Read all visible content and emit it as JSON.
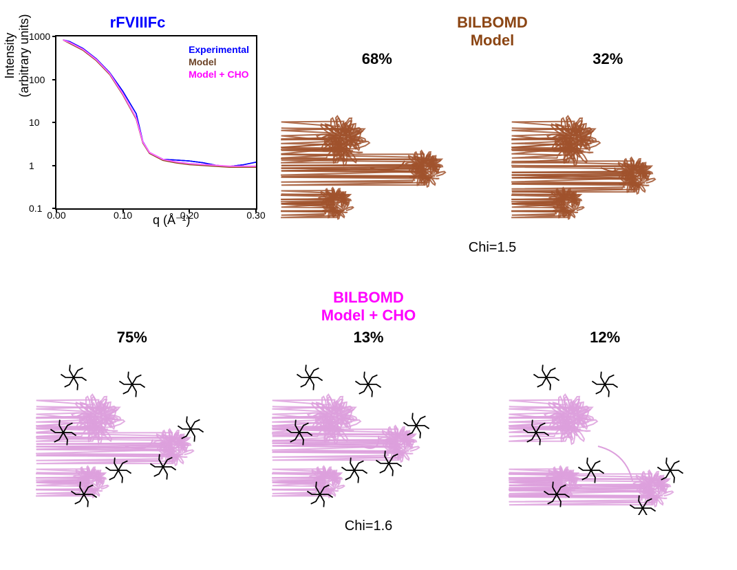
{
  "chart": {
    "title": "rFVIIIFc",
    "title_color": "#0000ff",
    "ylabel_line1": "Intensity",
    "ylabel_line2": "(arbitrary units)",
    "xlabel": "q (Å⁻¹)",
    "y_ticks": [
      {
        "label": "0.1",
        "pos": 0.0
      },
      {
        "label": "1",
        "pos": 0.25
      },
      {
        "label": "10",
        "pos": 0.5
      },
      {
        "label": "100",
        "pos": 0.75
      },
      {
        "label": "1000",
        "pos": 1.0
      }
    ],
    "x_ticks": [
      {
        "label": "0.00",
        "pos": 0.0
      },
      {
        "label": "0.10",
        "pos": 0.333
      },
      {
        "label": "0.20",
        "pos": 0.667
      },
      {
        "label": "0.30",
        "pos": 1.0
      }
    ],
    "legend": [
      {
        "text": "Experimental",
        "color": "#0000ff"
      },
      {
        "text": "Model",
        "color": "#6b4226"
      },
      {
        "text": "Model + CHO",
        "color": "#ff00ff"
      }
    ],
    "series_experimental": {
      "color": "#0000ff",
      "points": [
        [
          0.01,
          0.98
        ],
        [
          0.02,
          0.97
        ],
        [
          0.04,
          0.93
        ],
        [
          0.06,
          0.87
        ],
        [
          0.08,
          0.79
        ],
        [
          0.1,
          0.68
        ],
        [
          0.12,
          0.55
        ],
        [
          0.13,
          0.4
        ],
        [
          0.14,
          0.34
        ],
        [
          0.16,
          0.29
        ],
        [
          0.18,
          0.27
        ],
        [
          0.2,
          0.26
        ],
        [
          0.22,
          0.26
        ],
        [
          0.24,
          0.26
        ],
        [
          0.26,
          0.26
        ],
        [
          0.28,
          0.26
        ],
        [
          0.3,
          0.26
        ]
      ]
    },
    "series_model": {
      "color": "#8b4513",
      "points": [
        [
          0.01,
          0.98
        ],
        [
          0.02,
          0.96
        ],
        [
          0.04,
          0.92
        ],
        [
          0.06,
          0.86
        ],
        [
          0.08,
          0.78
        ],
        [
          0.1,
          0.66
        ],
        [
          0.12,
          0.52
        ],
        [
          0.13,
          0.38
        ],
        [
          0.14,
          0.32
        ],
        [
          0.16,
          0.28
        ],
        [
          0.18,
          0.265
        ],
        [
          0.2,
          0.255
        ],
        [
          0.22,
          0.25
        ],
        [
          0.24,
          0.245
        ],
        [
          0.26,
          0.24
        ],
        [
          0.28,
          0.24
        ],
        [
          0.3,
          0.24
        ]
      ]
    },
    "series_model_cho": {
      "color": "#ff69ff",
      "points": [
        [
          0.01,
          0.98
        ],
        [
          0.02,
          0.965
        ],
        [
          0.04,
          0.925
        ],
        [
          0.06,
          0.865
        ],
        [
          0.08,
          0.785
        ],
        [
          0.1,
          0.665
        ],
        [
          0.12,
          0.525
        ],
        [
          0.13,
          0.385
        ],
        [
          0.14,
          0.325
        ],
        [
          0.16,
          0.285
        ],
        [
          0.18,
          0.27
        ],
        [
          0.2,
          0.26
        ],
        [
          0.22,
          0.255
        ],
        [
          0.24,
          0.25
        ],
        [
          0.26,
          0.245
        ],
        [
          0.28,
          0.245
        ],
        [
          0.3,
          0.245
        ]
      ]
    },
    "xlim": [
      0,
      0.3
    ],
    "ylim_log": [
      0.1,
      1000
    ]
  },
  "top_model": {
    "title_line1": "BILBOMD",
    "title_line2": "Model",
    "title_color": "#8b4513",
    "structures": [
      {
        "pct": "68%",
        "color": "#a0522d"
      },
      {
        "pct": "32%",
        "color": "#a0522d"
      }
    ],
    "chi": "Chi=1.5"
  },
  "bottom_model": {
    "title_line1": "BILBOMD",
    "title_line2": "Model + CHO",
    "title_color": "#ff00ff",
    "structures": [
      {
        "pct": "75%",
        "color": "#dda0dd"
      },
      {
        "pct": "13%",
        "color": "#dda0dd"
      },
      {
        "pct": "12%",
        "color": "#dda0dd"
      }
    ],
    "chi": "Chi=1.6",
    "glycan_color": "#000000"
  }
}
